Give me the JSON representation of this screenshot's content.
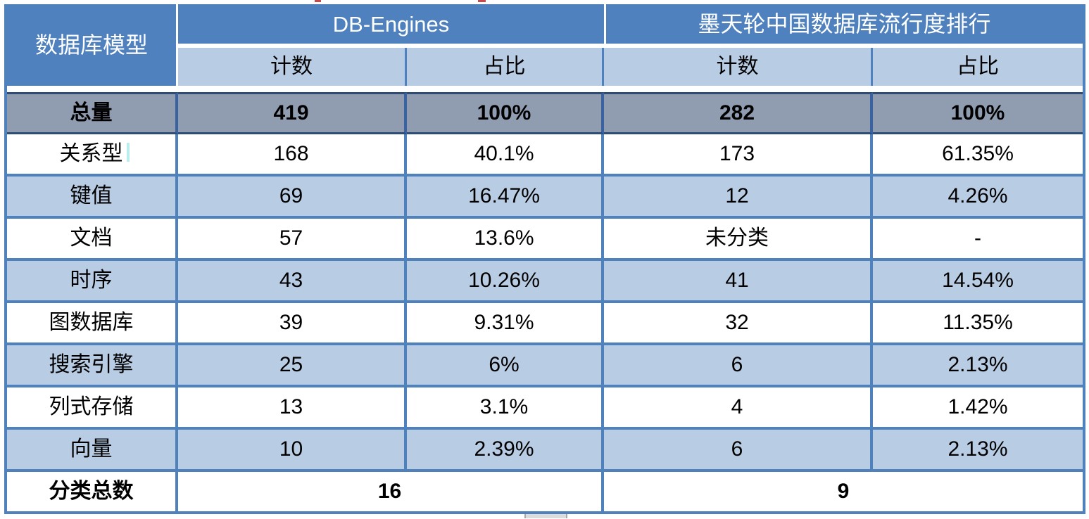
{
  "colors": {
    "header_blue": "#4e81bd",
    "light_blue_row": "#b8cce4",
    "total_row_gray": "#909db1",
    "border_blue": "#4f81bd",
    "total_border_dark": "#2d4d77",
    "header_text": "#ffffff",
    "body_text": "#000000"
  },
  "chart_data": {
    "type": "table",
    "corner_header": "数据库模型",
    "column_groups": [
      "DB-Engines",
      "墨天轮中国数据库流行度排行"
    ],
    "sub_columns": [
      "计数",
      "占比",
      "计数",
      "占比"
    ],
    "rows": [
      {
        "label": "总量",
        "values": [
          "419",
          "100%",
          "282",
          "100%"
        ],
        "emphasis": "total"
      },
      {
        "label": "关系型",
        "values": [
          "168",
          "40.1%",
          "173",
          "61.35%"
        ]
      },
      {
        "label": "键值",
        "values": [
          "69",
          "16.47%",
          "12",
          "4.26%"
        ]
      },
      {
        "label": "文档",
        "values": [
          "57",
          "13.6%",
          "未分类",
          "-"
        ]
      },
      {
        "label": "时序",
        "values": [
          "43",
          "10.26%",
          "41",
          "14.54%"
        ]
      },
      {
        "label": "图数据库",
        "values": [
          "39",
          "9.31%",
          "32",
          "11.35%"
        ]
      },
      {
        "label": "搜索引擎",
        "values": [
          "25",
          "6%",
          "6",
          "2.13%"
        ]
      },
      {
        "label": "列式存储",
        "values": [
          "13",
          "3.1%",
          "4",
          "1.42%"
        ]
      },
      {
        "label": "向量",
        "values": [
          "10",
          "2.39%",
          "6",
          "2.13%"
        ]
      }
    ],
    "footer": {
      "label": "分类总数",
      "values": [
        "16",
        "9"
      ]
    }
  }
}
